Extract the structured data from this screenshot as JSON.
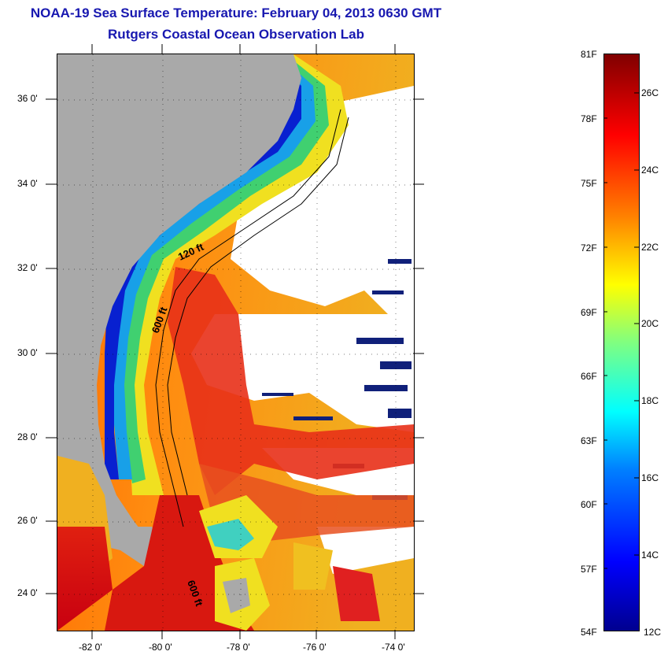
{
  "header": {
    "title": "NOAA-19 Sea Surface Temperature:  February 04, 2013 0630 GMT",
    "subtitle": "Rutgers Coastal Ocean Observation Lab"
  },
  "map": {
    "lat_labels": [
      "36 0'",
      "34 0'",
      "32 0'",
      "30 0'",
      "28 0'",
      "26 0'",
      "24 0'"
    ],
    "lon_labels": [
      "-82 0'",
      "-80 0'",
      "-78 0'",
      "-76 0'",
      "-74 0'"
    ],
    "contour_labels": [
      "120 ft",
      "600 ft",
      "600 ft"
    ],
    "colors": {
      "land": "#a9a9a9",
      "cloud": "#ffffff",
      "cold_water": "#0a1ad0",
      "warm_water": "#e03010"
    }
  },
  "colorbar": {
    "fahrenheit_labels": [
      "81F",
      "78F",
      "75F",
      "72F",
      "69F",
      "66F",
      "63F",
      "60F",
      "57F",
      "54F"
    ],
    "celsius_labels": [
      "26C",
      "24C",
      "22C",
      "20C",
      "18C",
      "16C",
      "14C",
      "12C"
    ],
    "gradient": [
      "#00008f",
      "#0000ff",
      "#0080ff",
      "#00ffff",
      "#80ff80",
      "#ffff00",
      "#ff8000",
      "#ff0000",
      "#800000"
    ]
  }
}
